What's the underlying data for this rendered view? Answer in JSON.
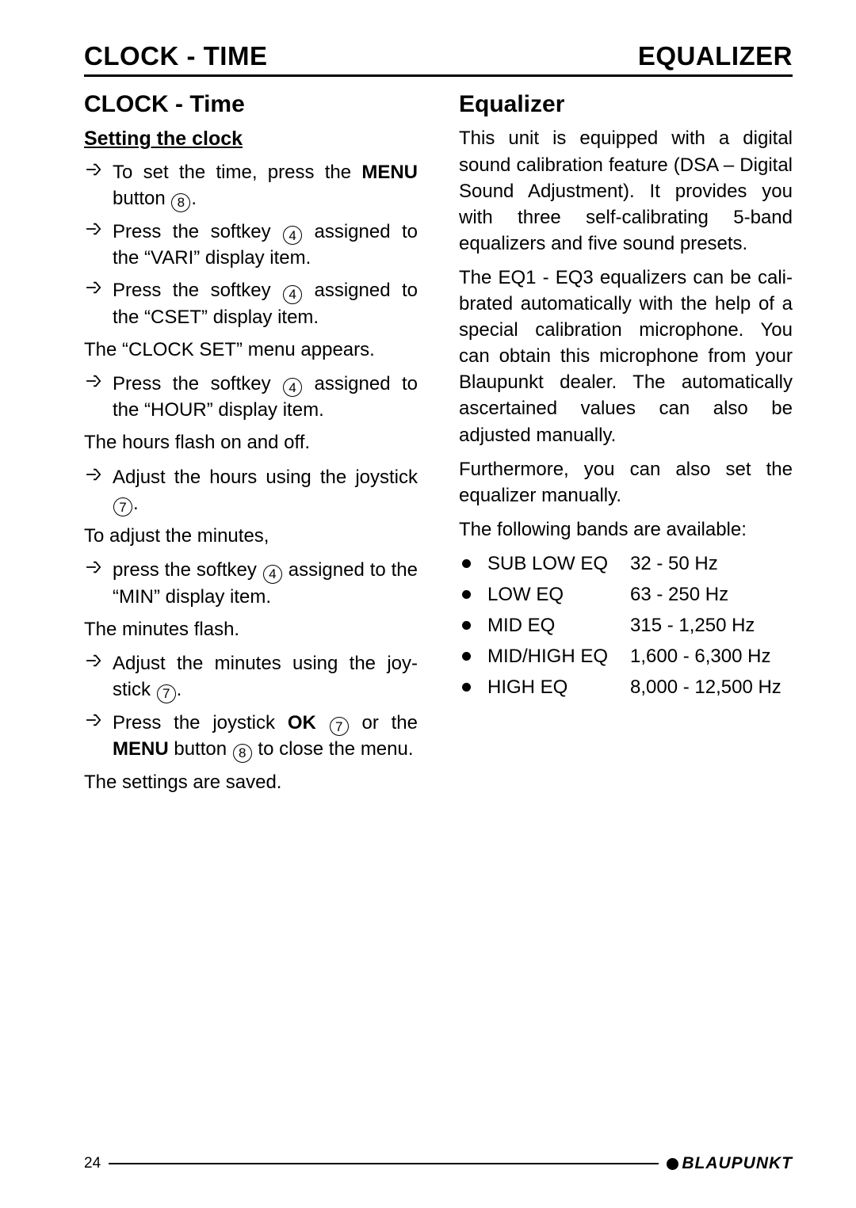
{
  "header": {
    "left": "CLOCK - TIME",
    "right": "EQUALIZER"
  },
  "left_col": {
    "section_title": "CLOCK - Time",
    "subsection": "Setting the clock",
    "blocks": [
      {
        "type": "step",
        "segments": [
          {
            "t": "To set the time, press the "
          },
          {
            "t": "MENU",
            "bold": true
          },
          {
            "t": " button "
          },
          {
            "circ": "8"
          },
          {
            "t": "."
          }
        ]
      },
      {
        "type": "step",
        "segments": [
          {
            "t": "Press the softkey "
          },
          {
            "circ": "4"
          },
          {
            "t": " assigned to the “VARI” display item."
          }
        ]
      },
      {
        "type": "step",
        "segments": [
          {
            "t": "Press the softkey "
          },
          {
            "circ": "4"
          },
          {
            "t": " assigned to the “CSET” display item."
          }
        ]
      },
      {
        "type": "plain",
        "segments": [
          {
            "t": "The “CLOCK SET” menu appears."
          }
        ]
      },
      {
        "type": "step",
        "segments": [
          {
            "t": "Press the softkey "
          },
          {
            "circ": "4"
          },
          {
            "t": " assigned to the “HOUR” display item."
          }
        ]
      },
      {
        "type": "plain",
        "segments": [
          {
            "t": "The hours flash on and off."
          }
        ]
      },
      {
        "type": "step",
        "segments": [
          {
            "t": "Adjust the hours using the joystick "
          },
          {
            "circ": "7"
          },
          {
            "t": "."
          }
        ]
      },
      {
        "type": "plain",
        "segments": [
          {
            "t": "To adjust the minutes,"
          }
        ]
      },
      {
        "type": "step",
        "segments": [
          {
            "t": "press the softkey "
          },
          {
            "circ": "4"
          },
          {
            "t": " assigned to the “MIN” display item."
          }
        ]
      },
      {
        "type": "plain",
        "segments": [
          {
            "t": "The minutes flash."
          }
        ]
      },
      {
        "type": "step",
        "segments": [
          {
            "t": "Adjust the minutes using the joy­stick "
          },
          {
            "circ": "7"
          },
          {
            "t": "."
          }
        ]
      },
      {
        "type": "step",
        "segments": [
          {
            "t": "Press the joystick "
          },
          {
            "t": "OK",
            "bold": true
          },
          {
            "t": " "
          },
          {
            "circ": "7"
          },
          {
            "t": " or the "
          },
          {
            "t": "MENU",
            "bold": true
          },
          {
            "t": " button "
          },
          {
            "circ": "8"
          },
          {
            "t": " to close the menu."
          }
        ]
      },
      {
        "type": "plain",
        "segments": [
          {
            "t": "The settings are saved."
          }
        ]
      }
    ]
  },
  "right_col": {
    "section_title": "Equalizer",
    "paragraphs": [
      "This unit is equipped with a digital sound calibration feature (DSA – Digital Sound Adjustment). It provides you with three self-calibrating 5-band equalizers and five sound presets.",
      "The EQ1 - EQ3 equalizers can be cali­brated automatically with the help of a special calibration microphone. You can obtain this microphone from your Blau­punkt dealer. The automatically ascer­tained values can also be adjusted manually.",
      "Furthermore, you can also set the equal­izer manually.",
      "The following bands are available:"
    ],
    "bands": [
      {
        "name": "SUB LOW EQ",
        "range": "32 - 50 Hz"
      },
      {
        "name": "LOW EQ",
        "range": "63 - 250 Hz"
      },
      {
        "name": "MID EQ",
        "range": "315 - 1,250 Hz"
      },
      {
        "name": "MID/HIGH EQ",
        "range": "1,600 - 6,300 Hz"
      },
      {
        "name": "HIGH EQ",
        "range": "8,000 - 12,500 Hz"
      }
    ]
  },
  "footer": {
    "page": "24",
    "brand": "BLAUPUNKT"
  }
}
